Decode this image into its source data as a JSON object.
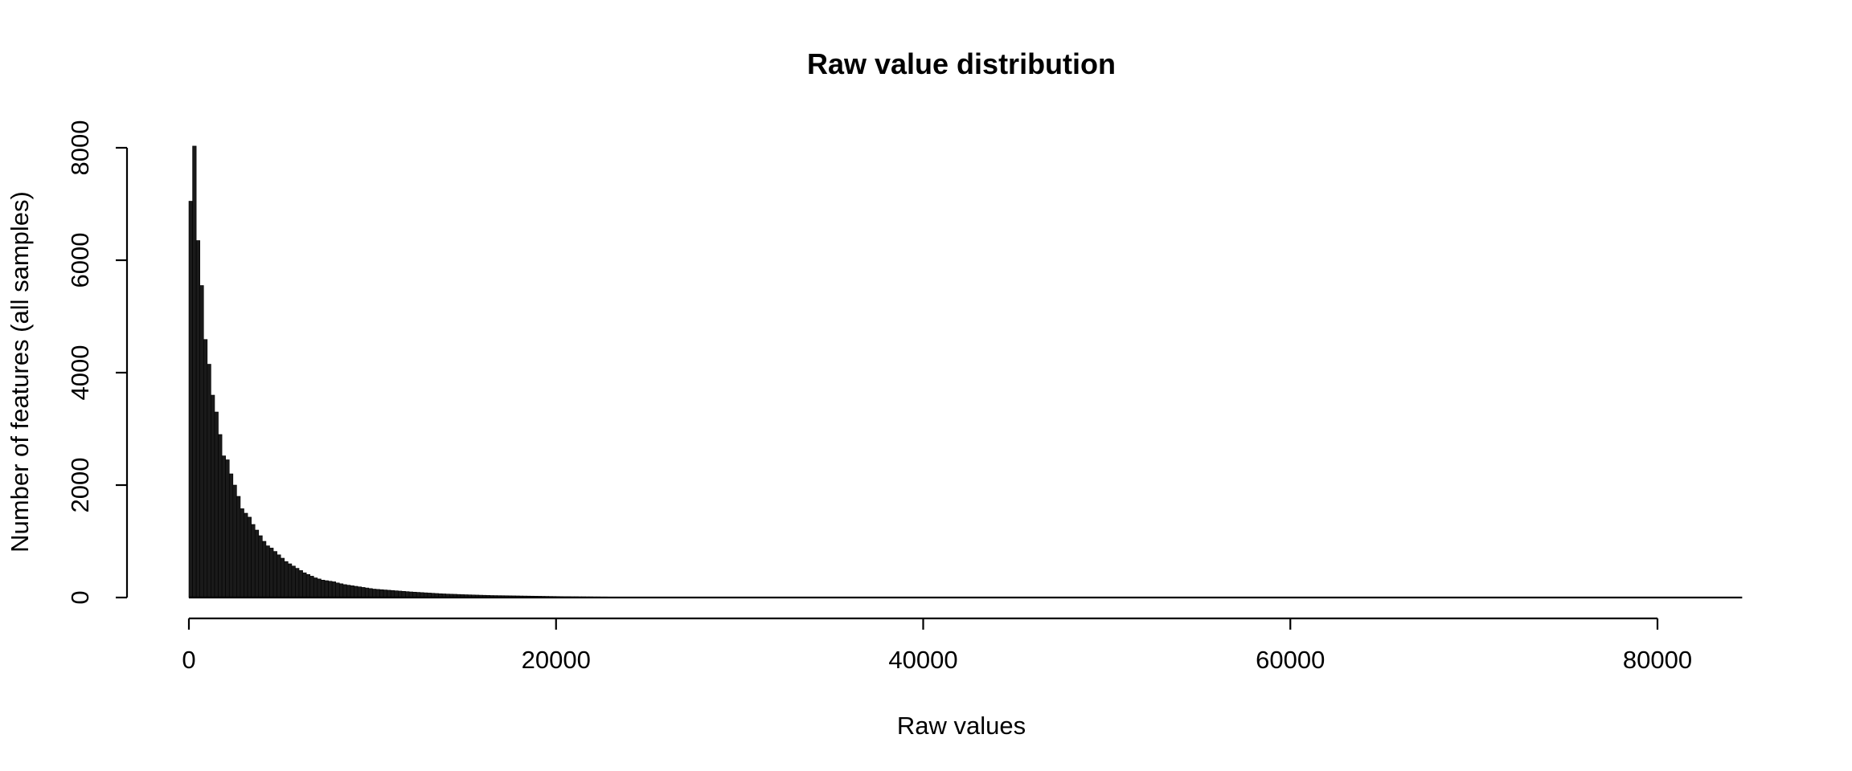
{
  "chart_data": {
    "type": "bar",
    "title": "Raw value distribution",
    "xlabel": "Raw values",
    "ylabel": "Number of features (all samples)",
    "xlim": [
      0,
      84000
    ],
    "ylim": [
      0,
      8000
    ],
    "x_ticks": [
      0,
      20000,
      40000,
      60000,
      80000
    ],
    "y_ticks": [
      0,
      2000,
      4000,
      6000,
      8000
    ],
    "x_tick_labels": [
      "0",
      "20000",
      "40000",
      "60000",
      "80000"
    ],
    "y_tick_labels": [
      "0",
      "2000",
      "4000",
      "6000",
      "8000"
    ],
    "bin_width": 200,
    "bin_start": 0,
    "counts": [
      7050,
      8030,
      6350,
      5550,
      4590,
      4150,
      3600,
      3300,
      2900,
      2520,
      2450,
      2200,
      2000,
      1800,
      1580,
      1500,
      1430,
      1300,
      1200,
      1100,
      1000,
      920,
      880,
      820,
      760,
      700,
      640,
      600,
      560,
      520,
      480,
      440,
      410,
      380,
      350,
      330,
      310,
      300,
      290,
      280,
      260,
      245,
      230,
      220,
      210,
      200,
      190,
      180,
      170,
      160,
      150,
      145,
      140,
      135,
      130,
      125,
      120,
      115,
      110,
      105,
      100,
      96,
      92,
      88,
      84,
      80,
      76,
      72,
      68,
      65,
      62,
      60,
      58,
      55,
      52,
      50,
      48,
      46,
      44,
      42,
      40,
      38,
      36,
      35,
      34,
      33,
      32,
      31,
      30,
      29,
      28,
      27,
      26,
      25,
      24,
      23,
      22,
      21,
      20,
      19,
      18,
      17,
      16,
      16,
      15,
      15,
      14,
      14,
      13,
      13,
      12,
      12,
      11,
      11,
      10,
      10,
      10,
      9,
      9,
      9,
      8,
      8,
      8,
      7,
      7,
      7,
      6,
      6,
      6,
      6,
      5,
      5,
      5,
      5,
      5,
      4,
      4,
      4,
      4,
      4,
      3,
      3,
      3,
      3,
      3,
      3,
      2,
      2,
      2,
      2,
      2,
      2,
      2,
      2,
      2,
      2,
      1,
      1,
      1,
      1,
      1,
      1,
      1,
      1,
      1,
      1,
      1,
      1,
      1,
      1,
      1,
      1,
      1,
      1,
      1,
      1
    ]
  }
}
